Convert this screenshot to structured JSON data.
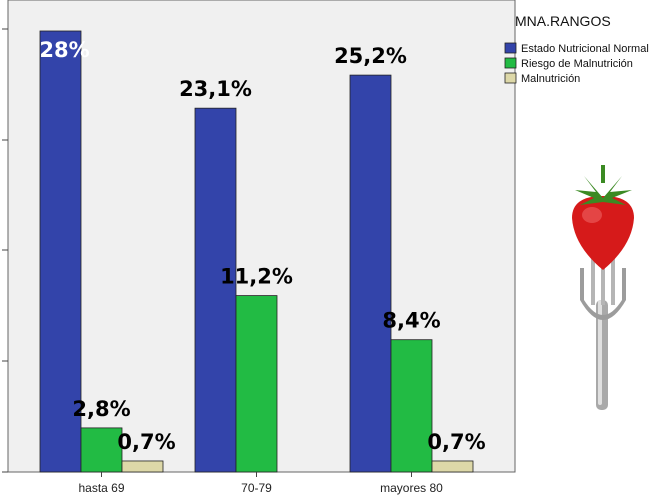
{
  "chart_data": {
    "type": "bar",
    "categories": [
      "hasta 69",
      "70-79",
      "mayores 80"
    ],
    "series": [
      {
        "name": "Estado Nutricional Normal",
        "values": [
          28,
          23.1,
          25.2
        ],
        "labels": [
          "28%",
          "23,1%",
          "25,2%"
        ],
        "color": "#3344aa"
      },
      {
        "name": "Riesgo de Malnutrición",
        "values": [
          2.8,
          11.2,
          8.4
        ],
        "labels": [
          "2,8%",
          "11,2%",
          "8,4%"
        ],
        "color": "#22bb44"
      },
      {
        "name": "Malnutrición",
        "values": [
          0.7,
          0,
          0.7
        ],
        "labels": [
          "0,7%",
          "",
          "0,7%"
        ],
        "color": "#ddd8a8"
      }
    ],
    "ylim": [
      0,
      28.5
    ],
    "legend_title": "MNA.RANGOS",
    "legend_position": "top-right",
    "grid": false
  }
}
